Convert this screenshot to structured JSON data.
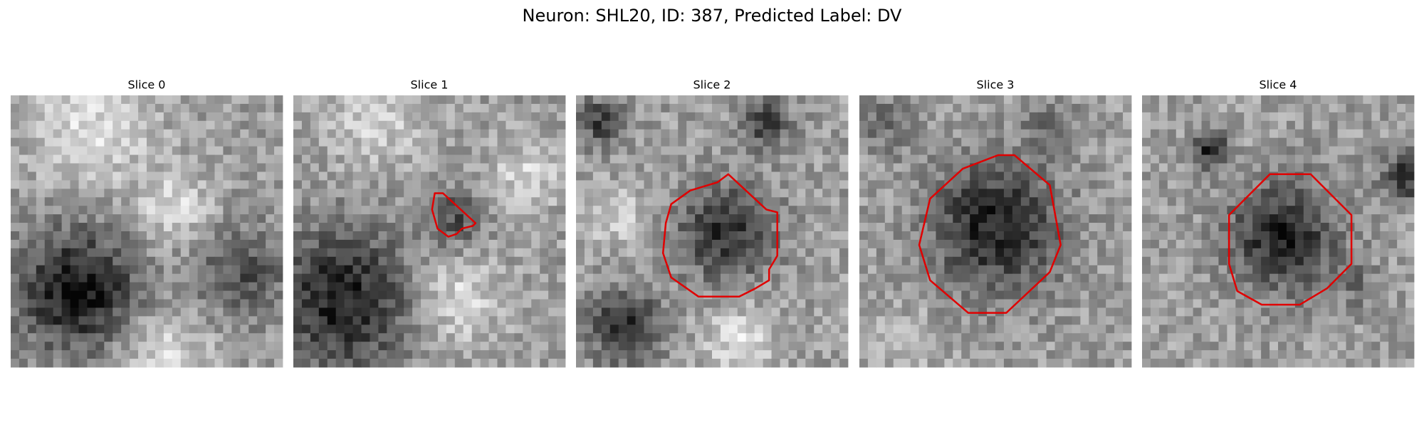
{
  "title": "Neuron: SHL20, ID: 387, Predicted Label: DV",
  "panels": [
    {
      "title": "Slice 0"
    },
    {
      "title": "Slice 1"
    },
    {
      "title": "Slice 2"
    },
    {
      "title": "Slice 3"
    },
    {
      "title": "Slice 4"
    }
  ]
}
